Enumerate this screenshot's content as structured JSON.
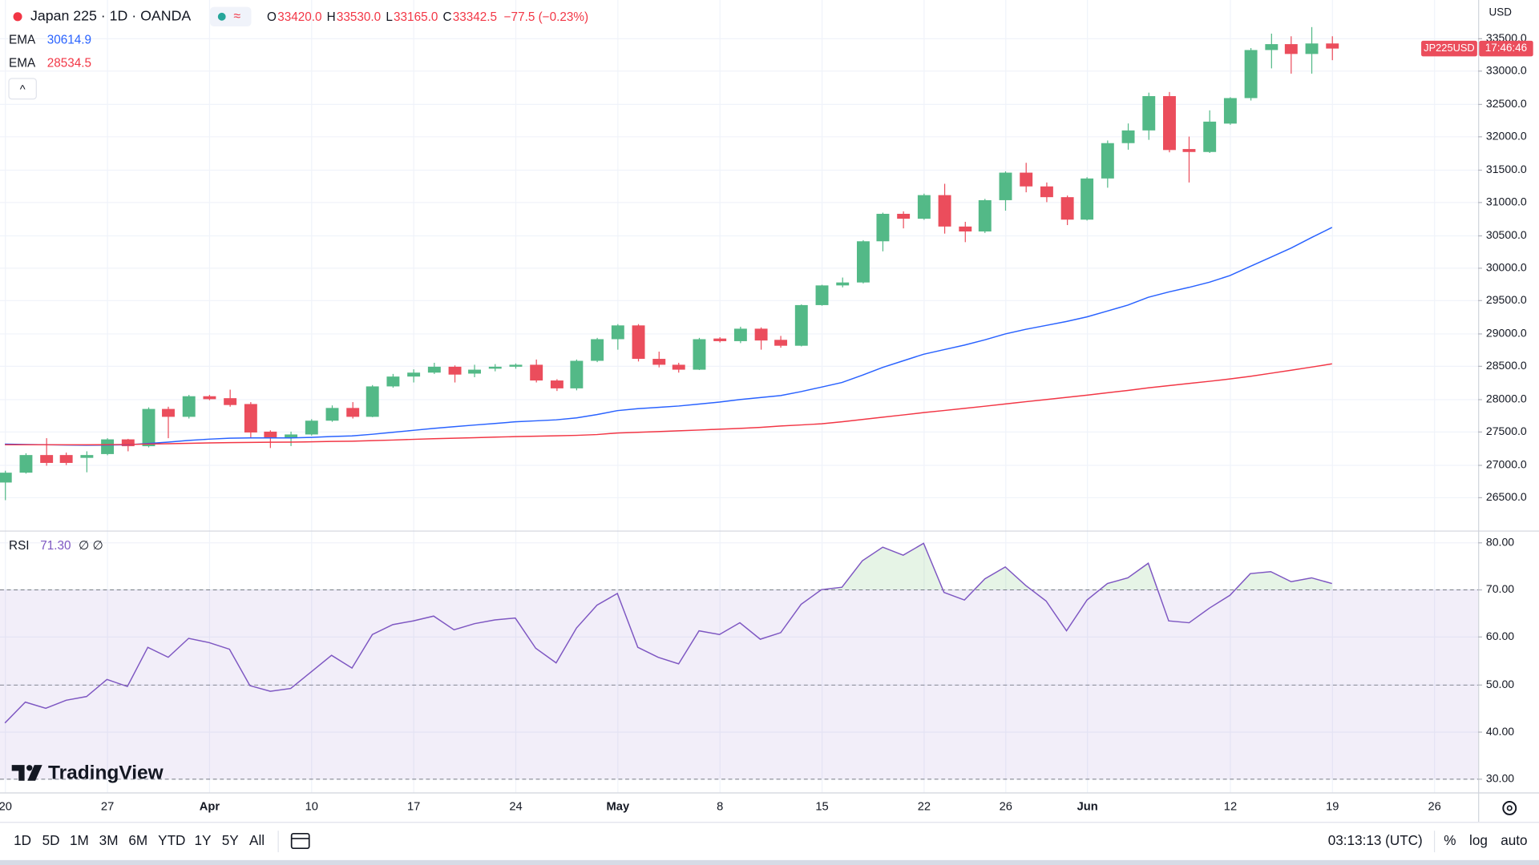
{
  "header": {
    "symbol": "Japan 225 · 1D · OANDA",
    "badge": "≈",
    "ohlc": [
      {
        "key": "O",
        "value": "33420.0"
      },
      {
        "key": "H",
        "value": "33530.0"
      },
      {
        "key": "L",
        "value": "33165.0"
      },
      {
        "key": "C",
        "value": "33342.5"
      }
    ],
    "change": "−77.5 (−0.23%)",
    "collapse": "^"
  },
  "brand": "TradingView",
  "chart_data": [
    {
      "type": "candlestick",
      "up_color": "#53b987",
      "down_color": "#eb4d5c",
      "currency": "USD",
      "symbol_tag": "JP225USD",
      "countdown": "17:46:46",
      "grid": true,
      "xlim": [
        -0.24,
        72.16
      ],
      "xticks": [
        {
          "value": 0,
          "label": "20"
        },
        {
          "value": 5,
          "label": "27"
        },
        {
          "value": 10,
          "label": "Apr"
        },
        {
          "value": 15,
          "label": "10"
        },
        {
          "value": 20,
          "label": "17"
        },
        {
          "value": 25,
          "label": "24"
        },
        {
          "value": 30,
          "label": "May"
        },
        {
          "value": 35,
          "label": "8"
        },
        {
          "value": 40,
          "label": "15"
        },
        {
          "value": 45,
          "label": "22"
        },
        {
          "value": 49,
          "label": "26"
        },
        {
          "value": 53,
          "label": "Jun"
        },
        {
          "value": 60,
          "label": "12"
        },
        {
          "value": 65,
          "label": "19"
        },
        {
          "value": 70,
          "label": "26"
        }
      ],
      "ylim": [
        26006,
        34083
      ],
      "yticks": [
        {
          "value": 26500,
          "label": "26500.0"
        },
        {
          "value": 27000,
          "label": "27000.0"
        },
        {
          "value": 27500,
          "label": "27500.0"
        },
        {
          "value": 28000,
          "label": "28000.0"
        },
        {
          "value": 28500,
          "label": "28500.0"
        },
        {
          "value": 29000,
          "label": "29000.0"
        },
        {
          "value": 29500,
          "label": "29500.0"
        },
        {
          "value": 30000,
          "label": "30000.0"
        },
        {
          "value": 30500,
          "label": "30500.0"
        },
        {
          "value": 31000,
          "label": "31000.0"
        },
        {
          "value": 31500,
          "label": "31500.0"
        },
        {
          "value": 32000,
          "label": "32000.0"
        },
        {
          "value": 32500,
          "label": "32500.0"
        },
        {
          "value": 33000,
          "label": "33000.0"
        },
        {
          "value": 33500,
          "label": "33500.0"
        }
      ],
      "open": [
        26724,
        26874,
        27143,
        27143,
        27100,
        27158,
        27382,
        27278,
        27846,
        27726,
        28040,
        28010,
        27921,
        27500,
        27412,
        27457,
        27667,
        27861,
        27726,
        28190,
        28340,
        28400,
        28490,
        28385,
        28460,
        28490,
        28520,
        28280,
        28160,
        28580,
        28910,
        29120,
        28610,
        28520,
        28445,
        28920,
        28880,
        29070,
        28900,
        28810,
        29430,
        29730,
        29775,
        30403,
        30822,
        30747,
        31107,
        30628,
        30553,
        31030,
        31450,
        31240,
        31076,
        30733,
        31361,
        31900,
        32094,
        32617,
        31810,
        31765,
        32198,
        32587,
        33320,
        33410,
        33260,
        33420
      ],
      "high": [
        26904,
        27170,
        27400,
        27180,
        27200,
        27400,
        27390,
        27870,
        27880,
        28060,
        28060,
        28140,
        27950,
        27520,
        27500,
        27690,
        27900,
        27950,
        28210,
        28380,
        28450,
        28550,
        28510,
        28520,
        28530,
        28540,
        28600,
        28300,
        28600,
        28930,
        29140,
        29140,
        28720,
        28550,
        28930,
        28940,
        29100,
        29090,
        28960,
        29440,
        29740,
        29850,
        30420,
        30840,
        30860,
        31130,
        31280,
        30700,
        31050,
        31470,
        31600,
        31300,
        31100,
        31380,
        31940,
        32200,
        32670,
        32680,
        32000,
        32400,
        32600,
        33350,
        33570,
        33530,
        33670,
        33530
      ],
      "low": [
        26455,
        26860,
        26980,
        26990,
        26880,
        27140,
        27200,
        27260,
        27400,
        27700,
        27980,
        27880,
        27400,
        27250,
        27280,
        27440,
        27650,
        27700,
        27720,
        28170,
        28250,
        28380,
        28250,
        28330,
        28420,
        28460,
        28250,
        28120,
        28130,
        28560,
        28750,
        28570,
        28480,
        28400,
        28440,
        28860,
        28850,
        28750,
        28780,
        28800,
        29420,
        29700,
        29760,
        30250,
        30600,
        30730,
        30520,
        30390,
        30530,
        30870,
        31150,
        31000,
        30650,
        30720,
        31220,
        31800,
        31950,
        31760,
        31300,
        31750,
        32180,
        32550,
        33040,
        32960,
        32960,
        33165
      ],
      "close": [
        26874,
        27143,
        27023,
        27023,
        27143,
        27382,
        27278,
        27846,
        27726,
        28040,
        27995,
        27906,
        27487,
        27412,
        27457,
        27667,
        27861,
        27726,
        28190,
        28340,
        28400,
        28490,
        28370,
        28445,
        28490,
        28520,
        28280,
        28160,
        28580,
        28910,
        29120,
        28610,
        28520,
        28445,
        28910,
        28880,
        29070,
        28890,
        28810,
        29430,
        29730,
        29775,
        30403,
        30822,
        30747,
        31107,
        30628,
        30553,
        31030,
        31450,
        31240,
        31076,
        30733,
        31361,
        31900,
        32094,
        32617,
        31795,
        31765,
        32228,
        32587,
        33320,
        33410,
        33260,
        33420,
        33342.5
      ],
      "series": [
        {
          "name": "EMA",
          "color": "#2962ff",
          "values": [
            27310,
            27305,
            27300,
            27295,
            27292,
            27295,
            27300,
            27320,
            27340,
            27365,
            27385,
            27400,
            27405,
            27405,
            27405,
            27412,
            27425,
            27435,
            27460,
            27490,
            27520,
            27550,
            27575,
            27600,
            27625,
            27650,
            27665,
            27680,
            27710,
            27760,
            27820,
            27850,
            27870,
            27890,
            27920,
            27950,
            27990,
            28020,
            28050,
            28110,
            28180,
            28250,
            28360,
            28480,
            28580,
            28680,
            28750,
            28820,
            28900,
            28990,
            29060,
            29120,
            29180,
            29250,
            29340,
            29430,
            29550,
            29630,
            29700,
            29780,
            29880,
            30020,
            30160,
            30300,
            30460,
            30614.9
          ]
        },
        {
          "name": "EMA",
          "color": "#f23645",
          "values": [
            27300,
            27300,
            27300,
            27300,
            27300,
            27302,
            27304,
            27310,
            27316,
            27322,
            27328,
            27333,
            27336,
            27338,
            27340,
            27344,
            27350,
            27354,
            27362,
            27372,
            27382,
            27392,
            27400,
            27408,
            27416,
            27424,
            27430,
            27436,
            27444,
            27456,
            27480,
            27490,
            27500,
            27512,
            27524,
            27538,
            27550,
            27565,
            27585,
            27602,
            27620,
            27650,
            27685,
            27720,
            27755,
            27790,
            27822,
            27854,
            27888,
            27922,
            27956,
            27990,
            28022,
            28056,
            28092,
            28128,
            28168,
            28202,
            28234,
            28268,
            28304,
            28344,
            28390,
            28436,
            28484,
            28534.5
          ]
        }
      ]
    },
    {
      "type": "line",
      "ylim": [
        27.1,
        82.5
      ],
      "yticks": [
        {
          "value": 30,
          "label": "30.00"
        },
        {
          "value": 40,
          "label": "40.00"
        },
        {
          "value": 50,
          "label": "50.00"
        },
        {
          "value": 60,
          "label": "60.00"
        },
        {
          "value": 70,
          "label": "70.00"
        },
        {
          "value": 80,
          "label": "80.00"
        }
      ],
      "band": [
        30,
        70
      ],
      "midline": 50,
      "params": "∅ ∅",
      "series": [
        {
          "name": "RSI",
          "color": "#7e57c2",
          "value_label": "71.30",
          "values": [
            41.8,
            46.2,
            44.9,
            46.6,
            47.4,
            51.0,
            49.5,
            57.8,
            55.7,
            59.7,
            58.8,
            57.4,
            49.7,
            48.5,
            49.1,
            52.6,
            56.1,
            53.4,
            60.5,
            62.6,
            63.4,
            64.4,
            61.5,
            62.8,
            63.6,
            64.0,
            57.6,
            54.5,
            61.9,
            66.7,
            69.2,
            57.8,
            55.7,
            54.3,
            61.3,
            60.5,
            63.0,
            59.5,
            60.9,
            66.9,
            70.0,
            70.5,
            76.1,
            79.0,
            77.3,
            79.8,
            69.4,
            67.8,
            72.3,
            74.8,
            70.9,
            67.6,
            61.3,
            67.8,
            71.3,
            72.5,
            75.6,
            63.4,
            63.0,
            66.1,
            68.8,
            73.4,
            73.8,
            71.7,
            72.5,
            71.3
          ]
        }
      ]
    }
  ],
  "toolbar": {
    "ranges": [
      "1D",
      "5D",
      "1M",
      "3M",
      "6M",
      "YTD",
      "1Y",
      "5Y",
      "All"
    ],
    "clock": "03:13:13 (UTC)",
    "options": [
      "%",
      "log",
      "auto"
    ]
  }
}
